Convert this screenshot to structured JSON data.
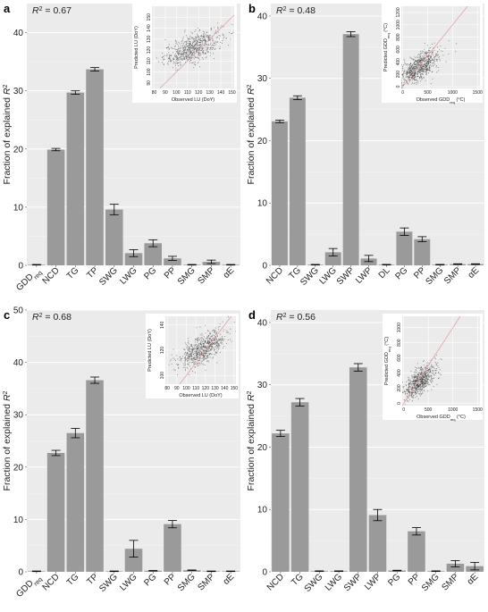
{
  "figure": {
    "background": "#ffffff",
    "panel_background": "#ebebeb",
    "bar_color": "#9a9a9a",
    "errorbar_color": "#000000",
    "scatter_point_color": "#333333",
    "scatter_line_color": "#e8a0a0"
  },
  "chart_data": [
    {
      "panel": "a",
      "type": "bar",
      "r2_label": "R² = 0.67",
      "ylabel": "Fraction of explained R²",
      "ylim": [
        0,
        45
      ],
      "yticks": [
        0,
        10,
        20,
        30,
        40
      ],
      "categories": [
        {
          "label": "GDD",
          "sub": "req"
        },
        {
          "label": "NCD"
        },
        {
          "label": "TG"
        },
        {
          "label": "TP"
        },
        {
          "label": "SWG"
        },
        {
          "label": "LWG"
        },
        {
          "label": "PG"
        },
        {
          "label": "PP"
        },
        {
          "label": "SMG"
        },
        {
          "label": "SMP"
        },
        {
          "label": "αE"
        }
      ],
      "values": [
        0.1,
        19.9,
        29.7,
        33.7,
        9.6,
        2.1,
        3.8,
        1.2,
        0.1,
        0.6,
        0.1
      ],
      "errors": [
        0.05,
        0.2,
        0.3,
        0.3,
        0.9,
        0.6,
        0.6,
        0.35,
        0.05,
        0.3,
        0.05
      ],
      "inset": {
        "type": "scatter",
        "xlabel": "Observed LU (DoY)",
        "ylabel": "Predicted LU (DoY)",
        "xlim": [
          78,
          152
        ],
        "ylim": [
          85,
          160
        ],
        "xticks": [
          80,
          90,
          100,
          110,
          120,
          130,
          140,
          150
        ],
        "yticks": [
          90,
          100,
          110,
          120,
          130,
          140,
          150
        ],
        "cloud": {
          "center": [
            115,
            122
          ],
          "spread_x": 13,
          "spread_y": 8,
          "n": 700
        }
      }
    },
    {
      "panel": "b",
      "type": "bar",
      "r2_label": "R² = 0.48",
      "ylabel": "Fraction of explained R²",
      "ylim": [
        0,
        42
      ],
      "yticks": [
        0,
        10,
        20,
        30,
        40
      ],
      "categories": [
        {
          "label": "NCD"
        },
        {
          "label": "TG"
        },
        {
          "label": "SWG"
        },
        {
          "label": "LWG"
        },
        {
          "label": "SWP"
        },
        {
          "label": "LWP"
        },
        {
          "label": "DL"
        },
        {
          "label": "PG"
        },
        {
          "label": "PP"
        },
        {
          "label": "SMG"
        },
        {
          "label": "SMP"
        },
        {
          "label": "αE"
        }
      ],
      "values": [
        23.1,
        26.9,
        0.1,
        2.1,
        37.1,
        1.1,
        0.1,
        5.4,
        4.2,
        0.1,
        0.2,
        0.2
      ],
      "errors": [
        0.2,
        0.3,
        0.05,
        0.6,
        0.4,
        0.5,
        0.05,
        0.6,
        0.4,
        0.05,
        0.05,
        0.05
      ],
      "inset": {
        "type": "scatter",
        "xlabel": "Observed GDDreq (°C)",
        "ylabel": "Predicted GDDreq (°C)",
        "xlim": [
          -30,
          1550
        ],
        "ylim": [
          -30,
          1300
        ],
        "xticks": [
          0,
          500,
          1000,
          1500
        ],
        "yticks": [
          0,
          200,
          400,
          600,
          800,
          1000,
          1200
        ],
        "cloud": {
          "center": [
            320,
            310
          ],
          "spread_x": 200,
          "spread_y": 130,
          "n": 750
        }
      }
    },
    {
      "panel": "c",
      "type": "bar",
      "r2_label": "R² = 0.68",
      "ylabel": "Fraction of explained R²",
      "ylim": [
        0,
        50
      ],
      "yticks": [
        0,
        10,
        20,
        30,
        40,
        50
      ],
      "categories": [
        {
          "label": "GDD",
          "sub": "req"
        },
        {
          "label": "NCD"
        },
        {
          "label": "TG"
        },
        {
          "label": "TP"
        },
        {
          "label": "SWG"
        },
        {
          "label": "LWG"
        },
        {
          "label": "PG"
        },
        {
          "label": "PP"
        },
        {
          "label": "SMG"
        },
        {
          "label": "SMP"
        },
        {
          "label": "αE"
        }
      ],
      "values": [
        0.1,
        22.7,
        26.5,
        36.6,
        0.1,
        4.4,
        0.2,
        9.1,
        0.3,
        0.1,
        0.1
      ],
      "errors": [
        0.05,
        0.5,
        0.9,
        0.6,
        0.05,
        1.6,
        0.05,
        0.7,
        0.05,
        0.05,
        0.05
      ],
      "inset": {
        "type": "scatter",
        "xlabel": "Observed LU (DoY)",
        "ylabel": "Predicted LU (DoY)",
        "xlim": [
          78,
          152
        ],
        "ylim": [
          93,
          147
        ],
        "xticks": [
          80,
          90,
          100,
          110,
          120,
          130,
          140,
          150
        ],
        "yticks": [
          100,
          120,
          140
        ],
        "cloud": {
          "center": [
            117,
            121
          ],
          "spread_x": 12,
          "spread_y": 7,
          "n": 700
        }
      }
    },
    {
      "panel": "d",
      "type": "bar",
      "r2_label": "R² = 0.56",
      "ylabel": "Fraction of explained R²",
      "ylim": [
        0,
        42
      ],
      "yticks": [
        0,
        10,
        20,
        30,
        40
      ],
      "categories": [
        {
          "label": "NCD"
        },
        {
          "label": "TG"
        },
        {
          "label": "SWG"
        },
        {
          "label": "LWG"
        },
        {
          "label": "SWP"
        },
        {
          "label": "LWP"
        },
        {
          "label": "PG"
        },
        {
          "label": "PP"
        },
        {
          "label": "SMG"
        },
        {
          "label": "SMP"
        },
        {
          "label": "αE"
        }
      ],
      "values": [
        22.2,
        27.2,
        0.1,
        0.1,
        32.8,
        9.1,
        0.2,
        6.5,
        0.1,
        1.3,
        0.9
      ],
      "errors": [
        0.5,
        0.6,
        0.05,
        0.05,
        0.6,
        0.9,
        0.05,
        0.6,
        0.05,
        0.5,
        0.6
      ],
      "inset": {
        "type": "scatter",
        "xlabel": "Observed GDDreq (°C)",
        "ylabel": "Predicted GDDreq (°C)",
        "xlim": [
          -30,
          1550
        ],
        "ylim": [
          -30,
          1150
        ],
        "xticks": [
          0,
          500,
          1000,
          1500
        ],
        "yticks": [
          0,
          200,
          400,
          600,
          800,
          1000
        ],
        "cloud": {
          "center": [
            320,
            290
          ],
          "spread_x": 170,
          "spread_y": 110,
          "n": 700
        }
      }
    }
  ]
}
